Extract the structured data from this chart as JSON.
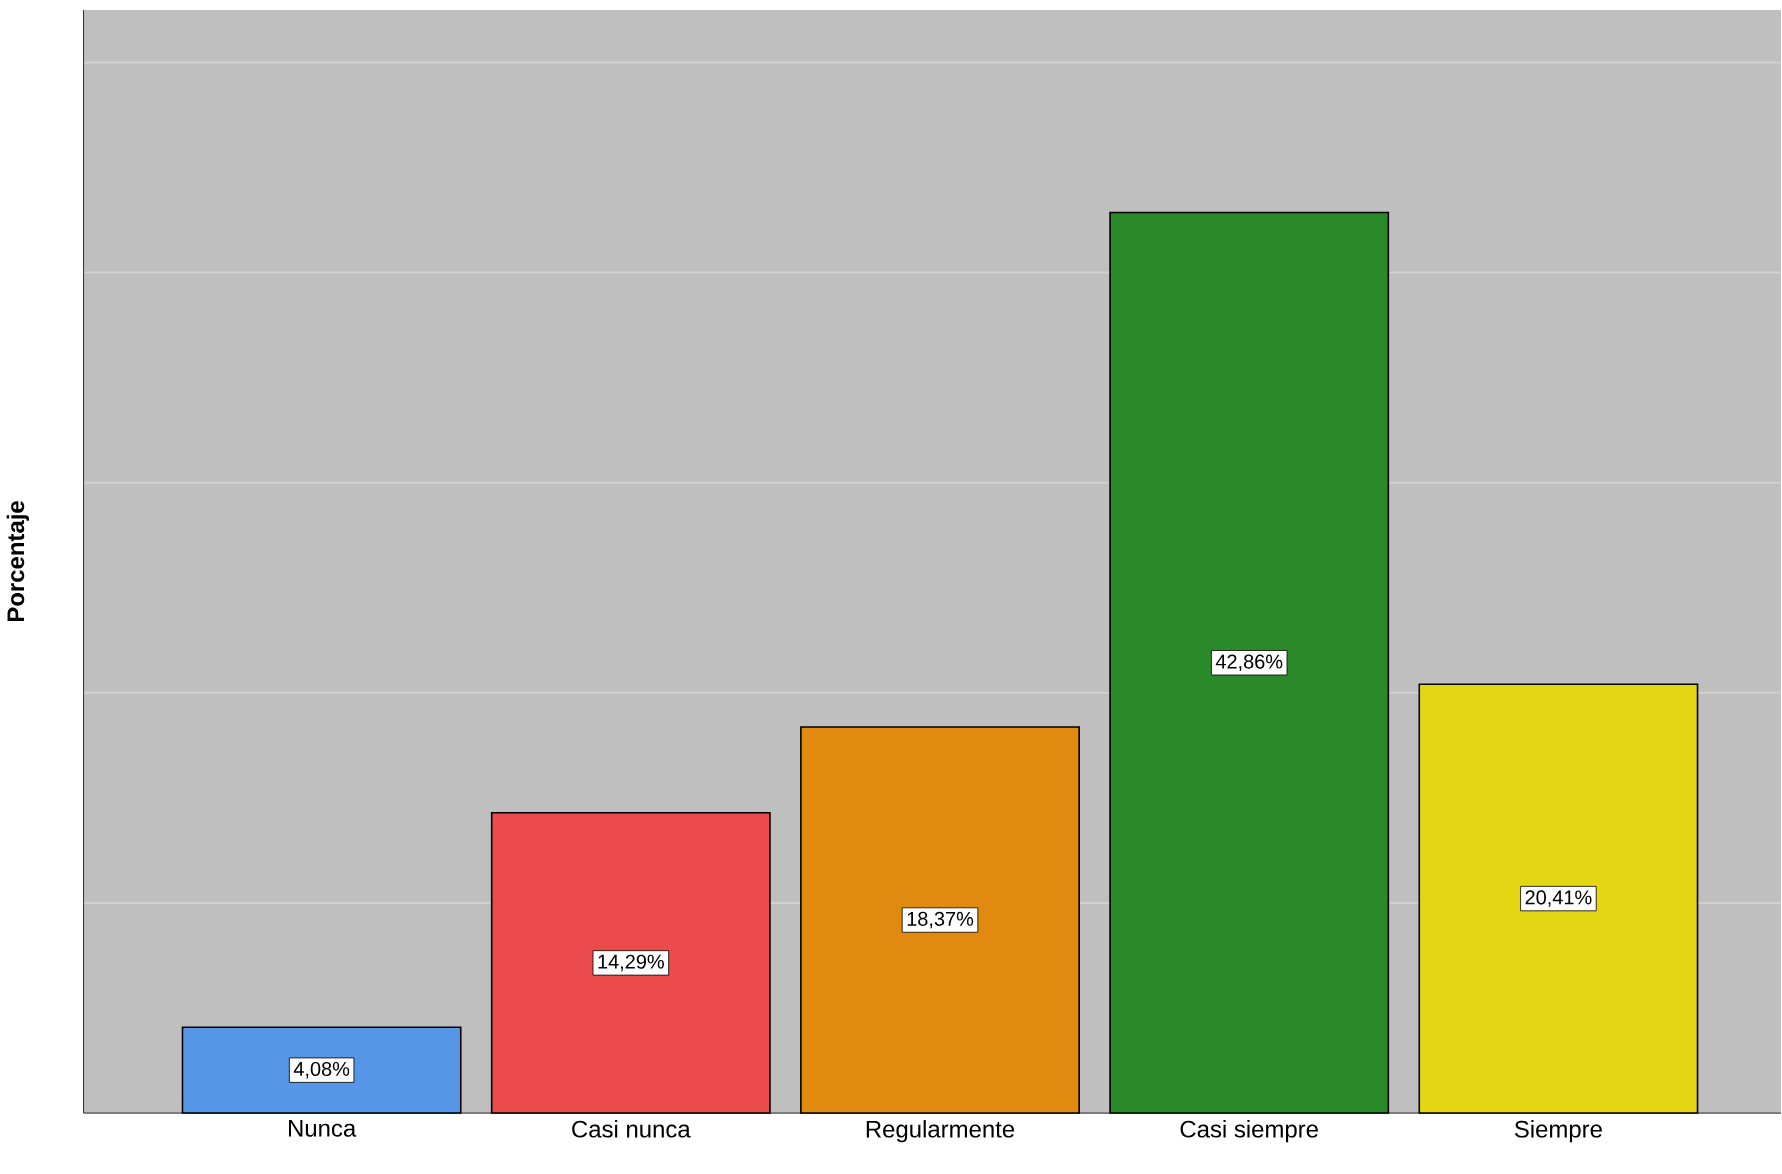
{
  "chart_data": {
    "type": "bar",
    "ylabel": "Porcentaje",
    "categories": [
      "Nunca",
      "Casi nunca",
      "Regularmente",
      "Casi siempre",
      "Siempre"
    ],
    "values": [
      4.08,
      14.29,
      18.37,
      42.86,
      20.41
    ],
    "colors": [
      "#5596e6",
      "#ec4b4b",
      "#e08a10",
      "#2a8a2a",
      "#e3d613"
    ],
    "value_labels": [
      "4,08%",
      "14,29%",
      "18,37%",
      "42,86%",
      "20,41%"
    ],
    "ylim": [
      0,
      52.5
    ],
    "yticks": [
      {
        "value": 0,
        "label": null
      },
      {
        "value": 10,
        "label": null
      },
      {
        "value": 20,
        "label": null
      },
      {
        "value": 30,
        "label": null
      },
      {
        "value": 40,
        "label": null
      },
      {
        "value": 50,
        "label": null
      }
    ],
    "grid": "y",
    "tick_labels": "x"
  }
}
